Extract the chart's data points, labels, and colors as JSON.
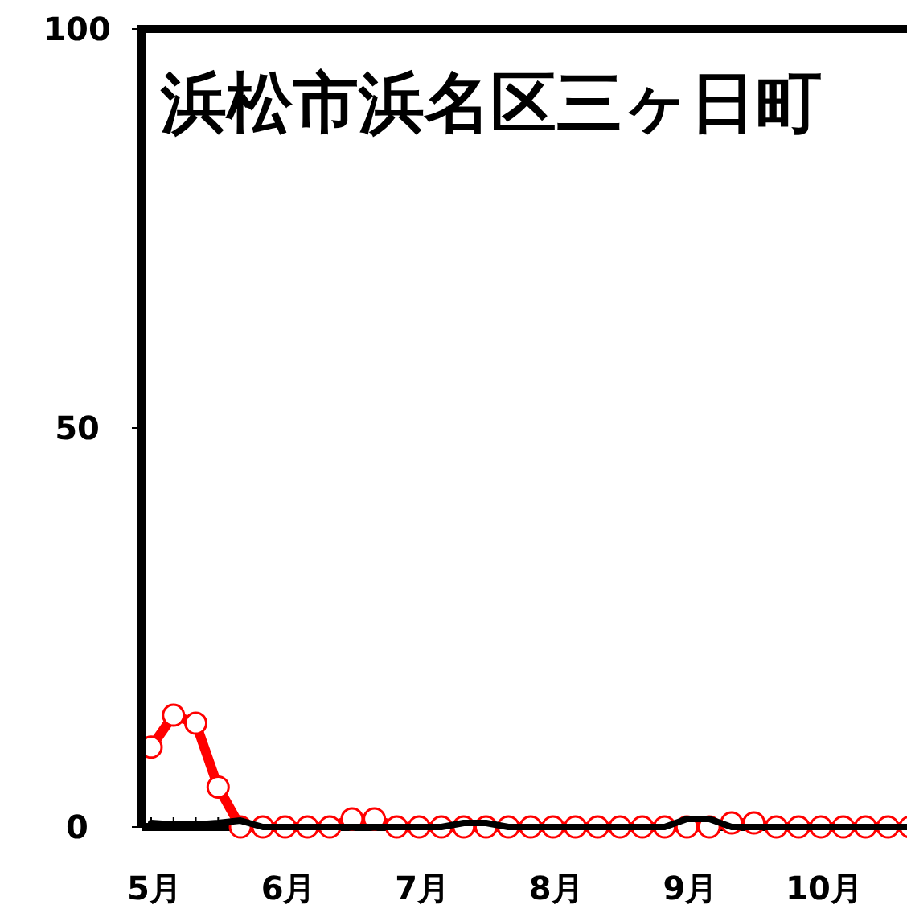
{
  "chart_data": {
    "type": "line",
    "title": "浜松市浜名区三ヶ日町",
    "categories": [
      "5月",
      null,
      null,
      null,
      null,
      null,
      "6月",
      null,
      null,
      null,
      null,
      null,
      "7月",
      null,
      null,
      null,
      null,
      null,
      "8月",
      null,
      null,
      null,
      null,
      null,
      "9月",
      null,
      null,
      null,
      null,
      null,
      "10月",
      null,
      null,
      null,
      null
    ],
    "series": [
      {
        "color": "#ff0000",
        "marker": "circle",
        "values": [
          10,
          14,
          13,
          5,
          0,
          0,
          0,
          0,
          0,
          1,
          1,
          0,
          0,
          0,
          0,
          0,
          0,
          0,
          0,
          0,
          0,
          0,
          0,
          0,
          0,
          0,
          0.5,
          0.5,
          0,
          0,
          0,
          0,
          0,
          0,
          0
        ]
      },
      {
        "color": "#000000",
        "marker": "none",
        "values": [
          0.5,
          0.3,
          0.3,
          0.5,
          0.8,
          0,
          0,
          0,
          0,
          0,
          0,
          0,
          0,
          0,
          0.5,
          0.5,
          0,
          0,
          0,
          0,
          0,
          0,
          0,
          0,
          1,
          1,
          0,
          0,
          0,
          0,
          0,
          0,
          0,
          0,
          0
        ]
      }
    ],
    "ylim": [
      0,
      100
    ],
    "yticks": [
      0,
      50,
      100
    ],
    "grid": false
  }
}
